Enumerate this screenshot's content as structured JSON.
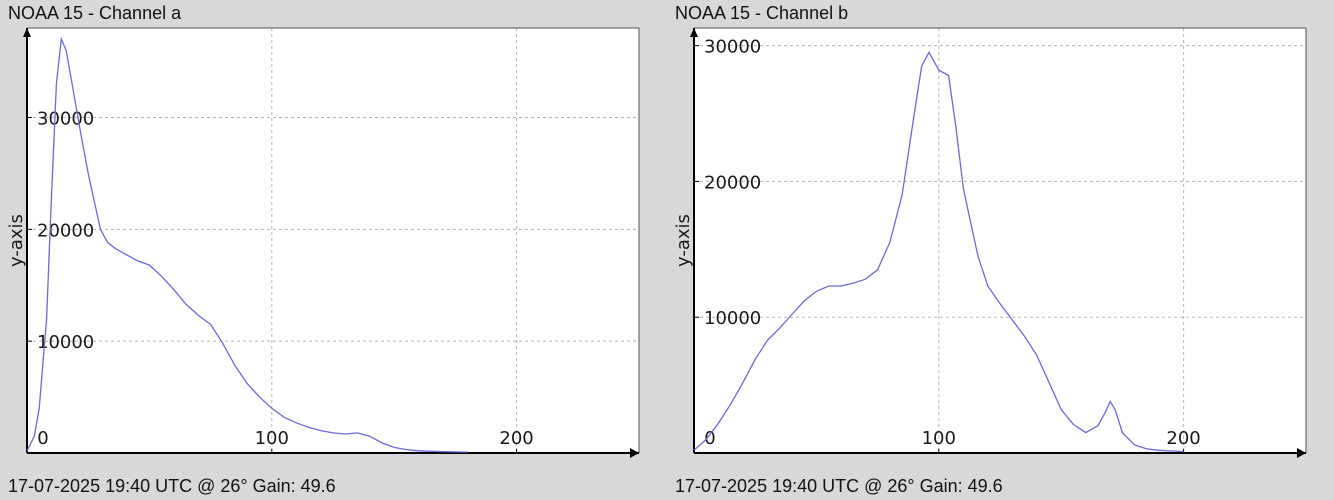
{
  "chart_data": [
    {
      "type": "line",
      "title": "NOAA 15 - Channel a",
      "footer": "17-07-2025 19:40 UTC @ 26° Gain: 49.6",
      "ylabel": "y-axis",
      "xlabel": "",
      "xlim": [
        0,
        250
      ],
      "ylim": [
        0,
        36000
      ],
      "x_ticks": [
        0,
        100,
        200
      ],
      "x_tick_labels": [
        "0",
        "100",
        "200"
      ],
      "y_ticks": [
        10000,
        20000,
        30000
      ],
      "y_tick_labels": [
        "10000",
        "20000",
        "30000"
      ],
      "grid": true,
      "line_color": "#6a6ad8",
      "series": [
        {
          "x": [
            0,
            3,
            5,
            8,
            10,
            12,
            14,
            16,
            18,
            20,
            22,
            25,
            28,
            30,
            33,
            36,
            40,
            45,
            50,
            55,
            60,
            65,
            70,
            75,
            80,
            85,
            90,
            95,
            100,
            105,
            110,
            115,
            120,
            125,
            130,
            135,
            140,
            145,
            150,
            155,
            160,
            165,
            170,
            175,
            180
          ],
          "y": [
            200,
            1500,
            4000,
            12000,
            23000,
            33000,
            37000,
            36000,
            33500,
            31000,
            28500,
            25000,
            22000,
            20000,
            18800,
            18300,
            17800,
            17200,
            16800,
            15800,
            14600,
            13300,
            12300,
            11500,
            9800,
            7800,
            6200,
            5000,
            4000,
            3200,
            2700,
            2300,
            2000,
            1800,
            1700,
            1800,
            1500,
            900,
            500,
            300,
            200,
            150,
            120,
            100,
            80
          ]
        }
      ]
    },
    {
      "type": "line",
      "title": "NOAA 15 - Channel b",
      "footer": "17-07-2025 19:40 UTC @ 26° Gain: 49.6",
      "ylabel": "y-axis",
      "xlabel": "",
      "xlim": [
        0,
        250
      ],
      "ylim": [
        0,
        30000
      ],
      "x_ticks": [
        0,
        100,
        200
      ],
      "x_tick_labels": [
        "0",
        "100",
        "200"
      ],
      "y_ticks": [
        10000,
        20000,
        30000
      ],
      "y_tick_labels": [
        "10000",
        "20000",
        "30000"
      ],
      "grid": true,
      "line_color": "#6a6ad8",
      "series": [
        {
          "x": [
            0,
            5,
            10,
            15,
            20,
            25,
            30,
            35,
            40,
            45,
            50,
            55,
            60,
            65,
            70,
            75,
            80,
            85,
            90,
            93,
            96,
            100,
            104,
            107,
            110,
            113,
            116,
            120,
            125,
            130,
            135,
            140,
            145,
            150,
            155,
            160,
            165,
            168,
            170,
            172,
            175,
            180,
            185,
            190,
            195,
            200
          ],
          "y": [
            200,
            1000,
            2200,
            3600,
            5200,
            6900,
            8300,
            9200,
            10200,
            11200,
            11900,
            12300,
            12300,
            12500,
            12800,
            13500,
            15500,
            19000,
            25000,
            28500,
            29500,
            28200,
            27800,
            24000,
            19500,
            17000,
            14500,
            12300,
            11000,
            9800,
            8600,
            7200,
            5200,
            3200,
            2100,
            1500,
            2000,
            3000,
            3800,
            3200,
            1500,
            600,
            300,
            200,
            150,
            100
          ]
        }
      ]
    }
  ]
}
